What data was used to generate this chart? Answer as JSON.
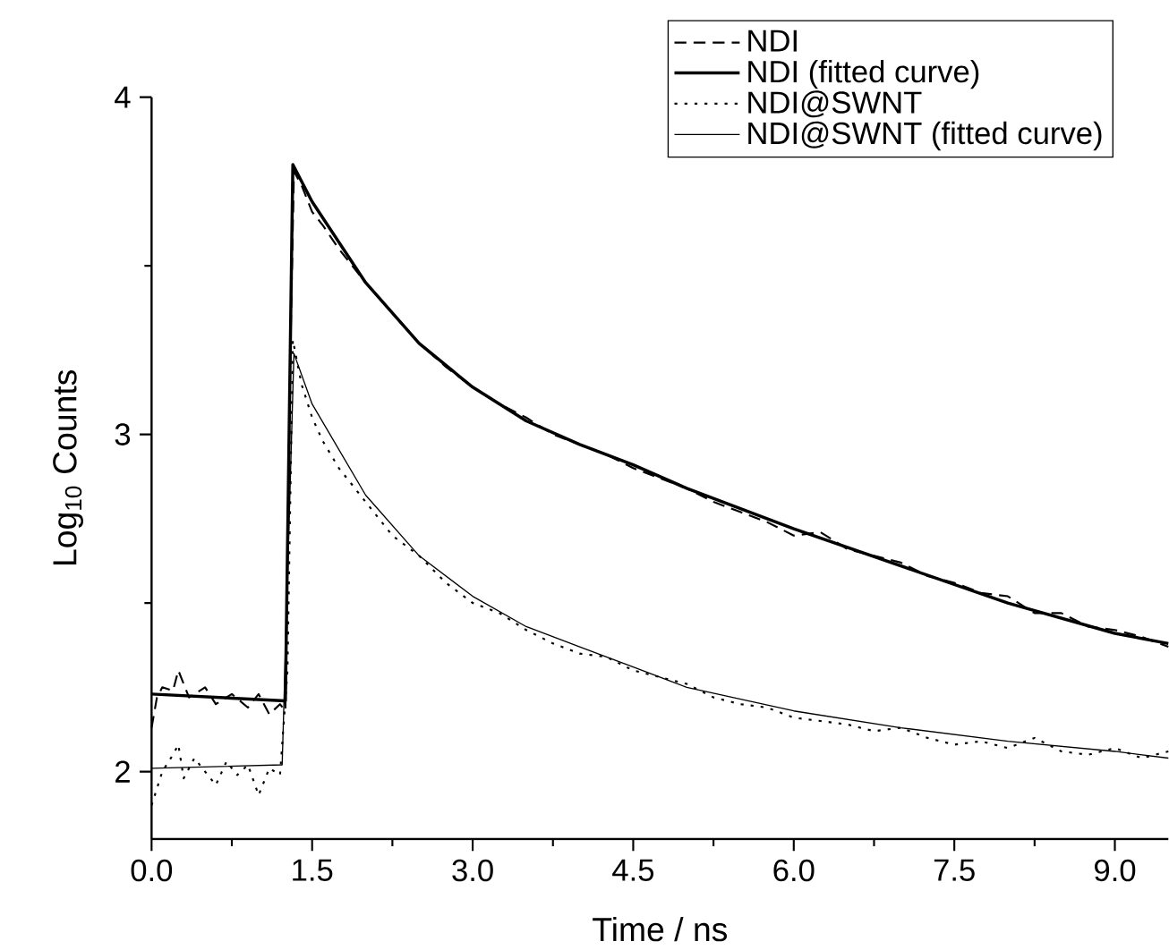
{
  "chart_data": {
    "type": "line",
    "xlabel": "Time / ns",
    "ylabel": "Log$_{10}$ Counts",
    "xlim": [
      0,
      9.5
    ],
    "ylim": [
      1.8,
      4
    ],
    "xticks": [
      {
        "value": 0,
        "label": "0.0"
      },
      {
        "value": 1.5,
        "label": "1.5"
      },
      {
        "value": 3,
        "label": "3.0"
      },
      {
        "value": 4.5,
        "label": "4.5"
      },
      {
        "value": 6,
        "label": "6.0"
      },
      {
        "value": 7.5,
        "label": "7.5"
      },
      {
        "value": 9,
        "label": "9.0"
      }
    ],
    "yticks": [
      2,
      3,
      4
    ],
    "legend": "top right",
    "grid": false,
    "series": [
      {
        "name": "NDI",
        "color": "#000000",
        "line_style": "dashed",
        "x": [
          0,
          0.05,
          0.1,
          0.2,
          0.25,
          0.35,
          0.5,
          0.6,
          0.75,
          0.9,
          1.0,
          1.1,
          1.2,
          1.25,
          1.3,
          1.33,
          1.4,
          1.5,
          1.6,
          1.75,
          2.0,
          2.25,
          2.5,
          2.75,
          3.0,
          3.25,
          3.5,
          3.75,
          4.0,
          4.25,
          4.5,
          4.75,
          5.0,
          5.25,
          5.5,
          5.75,
          6.0,
          6.25,
          6.5,
          6.75,
          7.0,
          7.25,
          7.5,
          7.75,
          8.0,
          8.25,
          8.5,
          8.75,
          9.0,
          9.25,
          9.5
        ],
        "values": [
          2.13,
          2.22,
          2.25,
          2.24,
          2.3,
          2.22,
          2.25,
          2.2,
          2.23,
          2.19,
          2.23,
          2.17,
          2.2,
          2.18,
          3.3,
          3.78,
          3.74,
          3.66,
          3.62,
          3.55,
          3.45,
          3.36,
          3.27,
          3.2,
          3.14,
          3.09,
          3.05,
          3.0,
          2.97,
          2.94,
          2.9,
          2.87,
          2.84,
          2.8,
          2.77,
          2.74,
          2.7,
          2.71,
          2.66,
          2.64,
          2.62,
          2.58,
          2.56,
          2.53,
          2.52,
          2.47,
          2.47,
          2.43,
          2.42,
          2.4,
          2.37
        ]
      },
      {
        "name": "NDI (fitted curve)",
        "color": "#000000",
        "line_style": "solid",
        "x": [
          0,
          1.25,
          1.32,
          1.5,
          2,
          2.5,
          3,
          3.5,
          4,
          4.5,
          5,
          6,
          7,
          8,
          9,
          9.5
        ],
        "values": [
          2.23,
          2.21,
          3.8,
          3.69,
          3.45,
          3.27,
          3.14,
          3.04,
          2.97,
          2.91,
          2.84,
          2.72,
          2.61,
          2.5,
          2.41,
          2.38
        ]
      },
      {
        "name": "NDI@SWNT",
        "color": "#000000",
        "line_style": "dotted",
        "x": [
          0,
          0.05,
          0.1,
          0.2,
          0.25,
          0.3,
          0.4,
          0.5,
          0.6,
          0.7,
          0.8,
          0.9,
          1.0,
          1.1,
          1.2,
          1.27,
          1.32,
          1.4,
          1.5,
          1.6,
          1.75,
          2.0,
          2.25,
          2.5,
          2.75,
          3.0,
          3.25,
          3.5,
          3.75,
          4.0,
          4.25,
          4.5,
          4.75,
          5.0,
          5.25,
          5.5,
          5.75,
          6.0,
          6.25,
          6.5,
          6.75,
          7.0,
          7.25,
          7.5,
          7.75,
          8.0,
          8.25,
          8.5,
          8.75,
          9.0,
          9.25,
          9.5
        ],
        "values": [
          1.9,
          1.95,
          2.0,
          2.05,
          2.08,
          1.98,
          2.04,
          2.0,
          1.96,
          2.03,
          1.99,
          2.02,
          1.93,
          2.01,
          1.99,
          2.3,
          3.28,
          3.15,
          3.05,
          2.98,
          2.9,
          2.8,
          2.7,
          2.64,
          2.56,
          2.5,
          2.47,
          2.42,
          2.38,
          2.35,
          2.34,
          2.3,
          2.28,
          2.26,
          2.22,
          2.2,
          2.19,
          2.16,
          2.15,
          2.14,
          2.12,
          2.13,
          2.1,
          2.08,
          2.09,
          2.07,
          2.1,
          2.06,
          2.05,
          2.07,
          2.04,
          2.06
        ]
      },
      {
        "name": "NDI@SWNT (fitted curve)",
        "color": "#000000",
        "line_style": "solid",
        "x": [
          0,
          1.22,
          1.33,
          1.5,
          2,
          2.5,
          3,
          3.5,
          4,
          4.5,
          5,
          6,
          7,
          8,
          9,
          9.5
        ],
        "values": [
          2.01,
          2.02,
          3.24,
          3.09,
          2.82,
          2.64,
          2.52,
          2.43,
          2.37,
          2.31,
          2.25,
          2.18,
          2.13,
          2.09,
          2.06,
          2.04
        ]
      }
    ]
  }
}
